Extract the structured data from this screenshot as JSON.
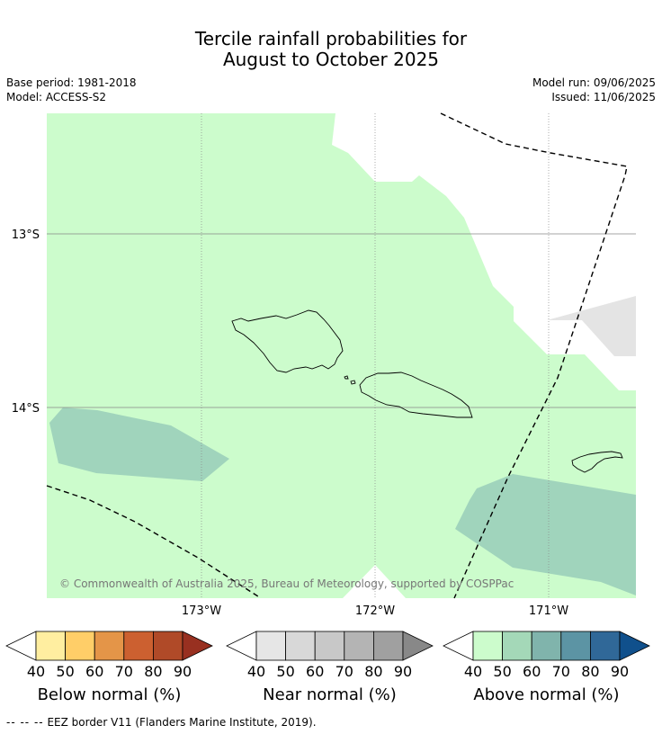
{
  "title_line1": "Tercile rainfall probabilities for",
  "title_line2": "August to October 2025",
  "base_period": "Base period: 1981-2018",
  "model": "Model: ACCESS-S2",
  "model_run": "Model run: 09/06/2025",
  "issued": "Issued: 11/06/2025",
  "map": {
    "lat_labels": [
      "13°S",
      "14°S"
    ],
    "lon_labels": [
      "173°W",
      "172°W",
      "171°W"
    ],
    "copyright": "© Commonwealth of Australia 2025, Bureau of Meteorology, supported by COSPPac",
    "colors": {
      "above_40_50": "#ccfccc",
      "above_50_60": "#a0d4bc",
      "near_70_80": "#e4e4e4",
      "land_outline": "#000000",
      "eez_border": "#000000"
    }
  },
  "legends": [
    {
      "label": "Below normal (%)",
      "ticks": [
        "40",
        "50",
        "60",
        "70",
        "80",
        "90"
      ],
      "colors": [
        "#ffeea0",
        "#ffce68",
        "#e49548",
        "#cc6030",
        "#b04a28",
        "#983020"
      ]
    },
    {
      "label": "Near normal (%)",
      "ticks": [
        "40",
        "50",
        "60",
        "70",
        "80",
        "90"
      ],
      "colors": [
        "#e6e6e6",
        "#d8d8d8",
        "#c8c8c8",
        "#b4b4b4",
        "#a0a0a0",
        "#888888"
      ]
    },
    {
      "label": "Above normal (%)",
      "ticks": [
        "40",
        "50",
        "60",
        "70",
        "80",
        "90"
      ],
      "colors": [
        "#ccfccc",
        "#a4d8b8",
        "#80b4ac",
        "#5c94a4",
        "#306898",
        "#10508c"
      ]
    }
  ],
  "footer": {
    "dashes": "-- -- --",
    "text": "EEZ border V11 (Flanders Marine Institute, 2019)."
  }
}
